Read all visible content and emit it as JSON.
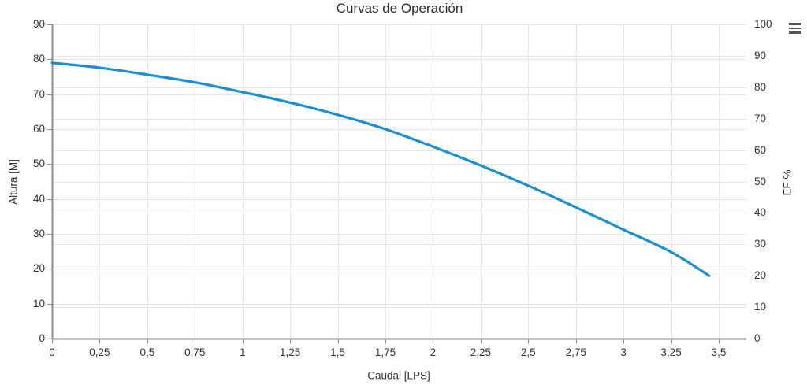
{
  "colors": {
    "series_blue": "#1a8fd1",
    "grid": "#e7e7e7",
    "axis": "#8c8c8c",
    "text": "#333333",
    "title_text": "#2e2e2e",
    "menu_icon": "#565656"
  },
  "toolbar": {
    "menu_icon": "hamburger-icon"
  },
  "chart_data": {
    "type": "line",
    "title": "Curvas de Operación",
    "legend": false,
    "grid": true,
    "x_axis": {
      "label": "Caudal [LPS]",
      "min": 0,
      "max": 3.5,
      "tick_interval": 0.25,
      "decimal_separator": ",",
      "tick_labels": [
        "0",
        "0,25",
        "0,5",
        "0,75",
        "1",
        "1,25",
        "1,5",
        "1,75",
        "2",
        "2,25",
        "2,5",
        "2,75",
        "3",
        "3,25",
        "3,5"
      ]
    },
    "y_axis_left": {
      "label": "Altura [M]",
      "min": 0,
      "max": 90,
      "tick_interval": 10,
      "tick_labels": [
        "0",
        "10",
        "20",
        "30",
        "40",
        "50",
        "60",
        "70",
        "80",
        "90"
      ]
    },
    "y_axis_right": {
      "label": "EF %",
      "min": 0,
      "max": 100,
      "tick_interval": 10,
      "tick_labels": [
        "0",
        "10",
        "20",
        "30",
        "40",
        "50",
        "60",
        "70",
        "80",
        "90",
        "100"
      ]
    },
    "series": [
      {
        "name": "Altura",
        "yaxis": "left",
        "color": "#1a8fd1",
        "x": [
          0,
          0.25,
          0.5,
          0.75,
          1,
          1.25,
          1.5,
          1.75,
          2,
          2.25,
          2.5,
          2.75,
          3,
          3.25,
          3.45
        ],
        "y": [
          79,
          77.6,
          75.6,
          73.4,
          70.6,
          67.6,
          64.1,
          60.0,
          55.0,
          49.6,
          43.8,
          37.6,
          31.2,
          24.8,
          18.0
        ]
      }
    ]
  }
}
